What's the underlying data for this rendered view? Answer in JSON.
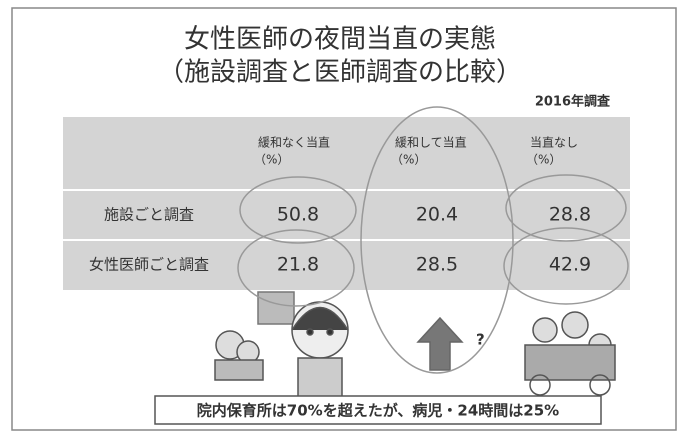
{
  "title": [
    "女性医師の夜間当直の実態",
    "（施設調査と医師調査の比較）"
  ],
  "note": "2016年調査",
  "table": {
    "header": [
      {
        "label": "緩和なく当直",
        "unit": "（%）"
      },
      {
        "label": "緩和して当直",
        "unit": "（%）"
      },
      {
        "label": "当直なし",
        "unit": "（%）"
      }
    ],
    "rows": [
      {
        "label": "施設ごと調査",
        "values": [
          50.8,
          20.4,
          28.8
        ]
      },
      {
        "label": "女性医師ごと調査",
        "values": [
          21.8,
          28.5,
          42.9
        ]
      }
    ]
  },
  "question_mark": "?",
  "footer": "院内保育所は70%を超えたが、病児・24時間は25%"
}
